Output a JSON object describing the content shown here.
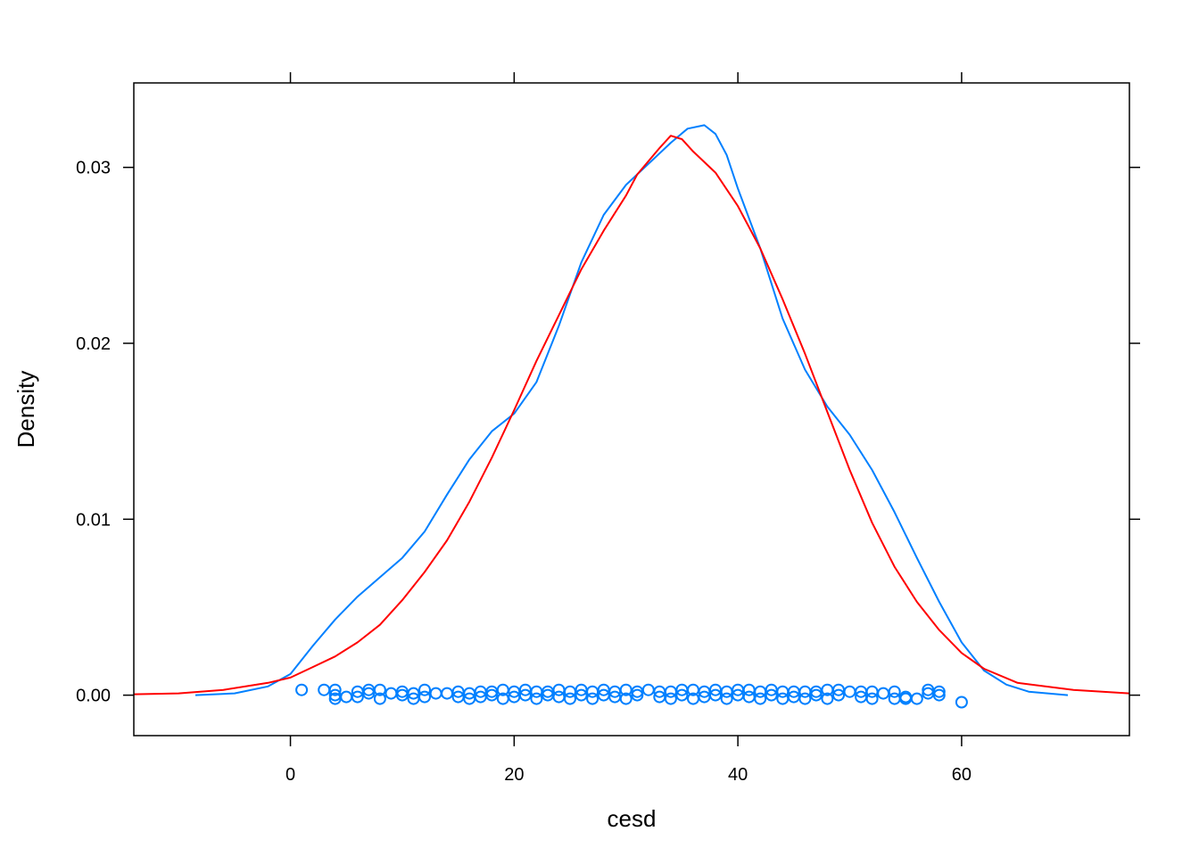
{
  "chart_data": {
    "type": "line",
    "title": "",
    "xlabel": "cesd",
    "ylabel": "Density",
    "xlim": [
      -14,
      75
    ],
    "ylim": [
      -0.0023,
      0.0348
    ],
    "x_ticks": [
      0,
      20,
      40,
      60
    ],
    "x_tick_labels": [
      "0",
      "20",
      "40",
      "60"
    ],
    "y_ticks": [
      0.0,
      0.01,
      0.02,
      0.03
    ],
    "y_tick_labels": [
      "0.00",
      "0.01",
      "0.02",
      "0.03"
    ],
    "grid": false,
    "legend": "none",
    "series": [
      {
        "kind": "line",
        "color": "#0080ff",
        "points": [
          [
            -8.5,
            0.0
          ],
          [
            -5,
            0.0001
          ],
          [
            -2,
            0.0005
          ],
          [
            0,
            0.0012
          ],
          [
            2,
            0.0028
          ],
          [
            4,
            0.0043
          ],
          [
            6,
            0.0056
          ],
          [
            8,
            0.0067
          ],
          [
            10,
            0.0078
          ],
          [
            12,
            0.0093
          ],
          [
            14,
            0.0114
          ],
          [
            16,
            0.0134
          ],
          [
            18,
            0.015
          ],
          [
            20,
            0.016
          ],
          [
            22,
            0.0178
          ],
          [
            24,
            0.021
          ],
          [
            26,
            0.0246
          ],
          [
            28,
            0.0273
          ],
          [
            30,
            0.029
          ],
          [
            32,
            0.0302
          ],
          [
            34,
            0.0314
          ],
          [
            35.5,
            0.0322
          ],
          [
            37,
            0.0324
          ],
          [
            38,
            0.0319
          ],
          [
            39,
            0.0307
          ],
          [
            40,
            0.0288
          ],
          [
            42,
            0.0254
          ],
          [
            44,
            0.0214
          ],
          [
            46,
            0.0185
          ],
          [
            48,
            0.0164
          ],
          [
            50,
            0.0148
          ],
          [
            52,
            0.0128
          ],
          [
            54,
            0.0104
          ],
          [
            56,
            0.0078
          ],
          [
            58,
            0.0053
          ],
          [
            60,
            0.003
          ],
          [
            62,
            0.0014
          ],
          [
            64,
            0.0006
          ],
          [
            66,
            0.0002
          ],
          [
            69.5,
            0.0
          ]
        ]
      },
      {
        "kind": "line",
        "color": "#ff0000",
        "points": [
          [
            -14,
            5e-05
          ],
          [
            -10,
            0.0001
          ],
          [
            -6,
            0.0003
          ],
          [
            -2,
            0.0007
          ],
          [
            0,
            0.001
          ],
          [
            2,
            0.0016
          ],
          [
            4,
            0.0022
          ],
          [
            6,
            0.003
          ],
          [
            8,
            0.004
          ],
          [
            10,
            0.0054
          ],
          [
            12,
            0.007
          ],
          [
            14,
            0.0088
          ],
          [
            16,
            0.011
          ],
          [
            18,
            0.0135
          ],
          [
            20,
            0.0162
          ],
          [
            22,
            0.019
          ],
          [
            24,
            0.0216
          ],
          [
            26,
            0.0242
          ],
          [
            28,
            0.0264
          ],
          [
            30,
            0.0284
          ],
          [
            31,
            0.0296
          ],
          [
            33,
            0.0311
          ],
          [
            34,
            0.0318
          ],
          [
            35,
            0.0316
          ],
          [
            36,
            0.0309
          ],
          [
            38,
            0.0297
          ],
          [
            40,
            0.0278
          ],
          [
            42,
            0.0254
          ],
          [
            44,
            0.0225
          ],
          [
            46,
            0.0194
          ],
          [
            48,
            0.0161
          ],
          [
            50,
            0.0128
          ],
          [
            52,
            0.0098
          ],
          [
            54,
            0.0073
          ],
          [
            56,
            0.0053
          ],
          [
            58,
            0.0037
          ],
          [
            60,
            0.0024
          ],
          [
            62,
            0.0015
          ],
          [
            65,
            0.0007
          ],
          [
            70,
            0.0003
          ],
          [
            75,
            0.0001
          ]
        ]
      },
      {
        "kind": "scatter",
        "color": "#0080ff",
        "points": [
          [
            1,
            0.0003
          ],
          [
            3,
            0.0003
          ],
          [
            4,
            0.0003
          ],
          [
            4,
            0.0
          ],
          [
            4,
            -0.0002
          ],
          [
            5,
            -0.0001
          ],
          [
            6,
            0.0002
          ],
          [
            6,
            -0.0001
          ],
          [
            7,
            0.0001
          ],
          [
            7,
            0.0003
          ],
          [
            8,
            0.0003
          ],
          [
            8,
            -0.0002
          ],
          [
            9,
            0.0001
          ],
          [
            10,
            0.0002
          ],
          [
            10,
            0.0
          ],
          [
            11,
            0.0001
          ],
          [
            11,
            -0.0002
          ],
          [
            12,
            0.0003
          ],
          [
            12,
            -0.0001
          ],
          [
            13,
            0.0001
          ],
          [
            14,
            0.0001
          ],
          [
            15,
            0.0002
          ],
          [
            15,
            -0.0001
          ],
          [
            16,
            0.0001
          ],
          [
            16,
            -0.0002
          ],
          [
            17,
            0.0002
          ],
          [
            17,
            -0.0001
          ],
          [
            18,
            0.0002
          ],
          [
            18,
            0.0
          ],
          [
            19,
            0.0003
          ],
          [
            19,
            -0.0002
          ],
          [
            20,
            0.0002
          ],
          [
            20,
            -0.0001
          ],
          [
            21,
            0.0003
          ],
          [
            21,
            0.0
          ],
          [
            22,
            0.0002
          ],
          [
            22,
            -0.0002
          ],
          [
            23,
            0.0002
          ],
          [
            23,
            0.0
          ],
          [
            24,
            0.0003
          ],
          [
            24,
            -0.0001
          ],
          [
            25,
            0.0002
          ],
          [
            25,
            -0.0002
          ],
          [
            26,
            0.0003
          ],
          [
            26,
            0.0
          ],
          [
            27,
            0.0002
          ],
          [
            27,
            -0.0002
          ],
          [
            28,
            0.0003
          ],
          [
            28,
            0.0
          ],
          [
            29,
            0.0002
          ],
          [
            29,
            -0.0001
          ],
          [
            30,
            0.0003
          ],
          [
            30,
            -0.0002
          ],
          [
            31,
            0.0002
          ],
          [
            31,
            0.0
          ],
          [
            32,
            0.0003
          ],
          [
            33,
            0.0002
          ],
          [
            33,
            -0.0001
          ],
          [
            34,
            0.0002
          ],
          [
            34,
            -0.0002
          ],
          [
            35,
            0.0003
          ],
          [
            35,
            0.0
          ],
          [
            36,
            0.0003
          ],
          [
            36,
            -0.0002
          ],
          [
            37,
            0.0002
          ],
          [
            37,
            -0.0001
          ],
          [
            38,
            0.0003
          ],
          [
            38,
            0.0
          ],
          [
            39,
            0.0002
          ],
          [
            39,
            -0.0002
          ],
          [
            40,
            0.0003
          ],
          [
            40,
            0.0
          ],
          [
            41,
            0.0003
          ],
          [
            41,
            -0.0001
          ],
          [
            42,
            0.0002
          ],
          [
            42,
            -0.0002
          ],
          [
            43,
            0.0003
          ],
          [
            43,
            0.0
          ],
          [
            44,
            0.0002
          ],
          [
            44,
            -0.0002
          ],
          [
            45,
            0.0002
          ],
          [
            45,
            -0.0001
          ],
          [
            46,
            0.0002
          ],
          [
            46,
            -0.0002
          ],
          [
            47,
            0.0002
          ],
          [
            47,
            0.0
          ],
          [
            48,
            0.0003
          ],
          [
            48,
            -0.0002
          ],
          [
            49,
            0.0003
          ],
          [
            49,
            0.0
          ],
          [
            50,
            0.0002
          ],
          [
            51,
            0.0002
          ],
          [
            51,
            -0.0001
          ],
          [
            52,
            0.0002
          ],
          [
            52,
            -0.0002
          ],
          [
            53,
            0.0001
          ],
          [
            54,
            0.0002
          ],
          [
            54,
            -0.0002
          ],
          [
            55,
            -0.0001
          ],
          [
            55,
            -0.0002
          ],
          [
            56,
            -0.0002
          ],
          [
            57,
            0.0003
          ],
          [
            57,
            0.0001
          ],
          [
            58,
            0.0002
          ],
          [
            58,
            0.0
          ],
          [
            60,
            -0.0004
          ]
        ]
      }
    ]
  }
}
